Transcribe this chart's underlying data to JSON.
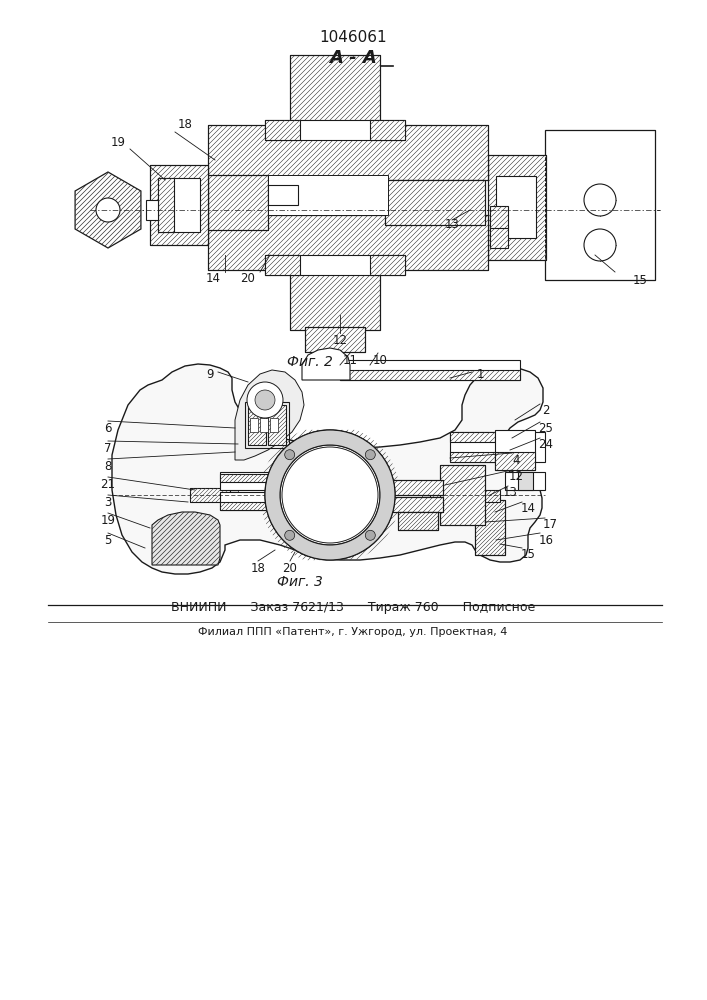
{
  "patent_number": "1046061",
  "section_label": "A - A",
  "fig2_label": "Фиг. 2",
  "fig3_label": "Фиг. 3",
  "footer_line1": "ВНИИПИ      Заказ 7621/13      Тираж 760      Подписное",
  "footer_line2": "Филиал ППП «Патент», г. Ужгород, ул. Проектная, 4",
  "bg_color": "#ffffff",
  "line_color": "#1a1a1a"
}
